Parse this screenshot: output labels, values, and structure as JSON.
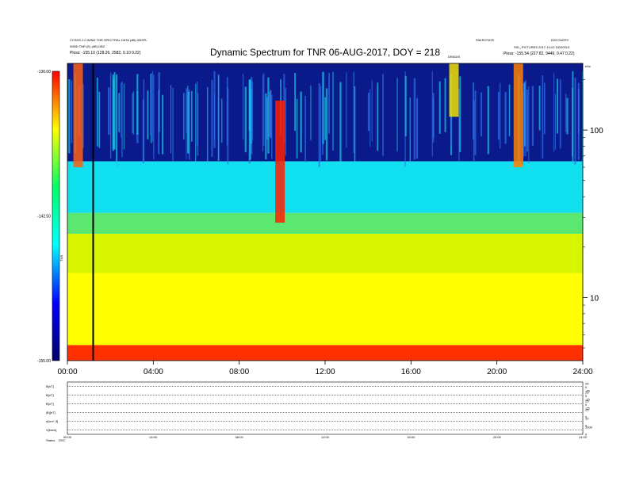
{
  "chart_data": [
    {
      "type": "heatmap",
      "title": "Dynamic Spectrum for TNR 06-AUG-2017, DOY = 218",
      "x_ticks": [
        "00:00",
        "04:00",
        "08:00",
        "12:00",
        "16:00",
        "20:00",
        "24:00"
      ],
      "xlim_hours": [
        0,
        24
      ],
      "y_scale": "log",
      "y_ticks": [
        {
          "value": 100,
          "label": "100"
        },
        {
          "value": 10,
          "label": "10"
        }
      ],
      "ylim": [
        4.2,
        250
      ],
      "colorbar": {
        "ticks": [
          "-130.00",
          "-142.50",
          "-155.00"
        ],
        "range": [
          -155,
          -130
        ],
        "label": "TNR",
        "colors": [
          "#000066",
          "#0000ff",
          "#00ffff",
          "#00ff66",
          "#ffff00",
          "#ff0000"
        ]
      },
      "header_left": [
        "CCSDS 2.0 WIND TNR SPECTRAL DATA (dB) DBSPL",
        "WIND TNR (E) (dB) DBZ",
        "Ploss: -155.10 (128.26, 2582, 0.10 0.22)"
      ],
      "header_right": [
        "PAKROTATE",
        "DSCOVERY",
        "SSL_PICTURES 2017-10-02 DDD0013",
        "Ploss: -155.54 (227.82, 9449, 0.47 0.22)"
      ],
      "marker_label": "DRADIS",
      "right_corner": "kHz",
      "bands": [
        {
          "top": 250,
          "bottom": 65,
          "color": "#0a1a8a"
        },
        {
          "top": 65,
          "bottom": 32,
          "color": "#10e0f0"
        },
        {
          "top": 32,
          "bottom": 24,
          "color": "#5ce870"
        },
        {
          "top": 24,
          "bottom": 14,
          "color": "#d8f500"
        },
        {
          "top": 14,
          "bottom": 5.2,
          "color": "#ffff00"
        },
        {
          "top": 5.2,
          "bottom": 4.2,
          "color": "#ff3000"
        }
      ],
      "bursts": [
        {
          "t": 0.5,
          "f_top": 250,
          "f_bottom": 60,
          "color": "#ff6010"
        },
        {
          "t": 9.9,
          "f_top": 150,
          "f_bottom": 28,
          "color": "#ff2000"
        },
        {
          "t": 18.0,
          "f_top": 250,
          "f_bottom": 120,
          "color": "#f0e000"
        },
        {
          "t": 21.0,
          "f_top": 250,
          "f_bottom": 60,
          "color": "#ff8000"
        }
      ],
      "data_gap_hours": 1.2
    },
    {
      "type": "line",
      "panel_label_rows": [
        "B[nT]",
        "B[nT]",
        "B[nT]",
        "|B|[nT]",
        "n[cm^-3]",
        "V[km/s]"
      ],
      "footer": [
        "Status",
        "DSC"
      ],
      "right_ticks": [
        [
          "25",
          "0",
          "-25"
        ],
        [
          "25",
          "0",
          "-25"
        ],
        [
          "25",
          "0",
          "-25"
        ],
        [
          "25",
          "0"
        ],
        [
          "10",
          "0"
        ],
        [
          "1000",
          "0"
        ]
      ],
      "x_ticks": [
        "00:00",
        "04:00",
        "08:00",
        "12:00",
        "16:00",
        "20:00",
        "24:00"
      ]
    }
  ]
}
